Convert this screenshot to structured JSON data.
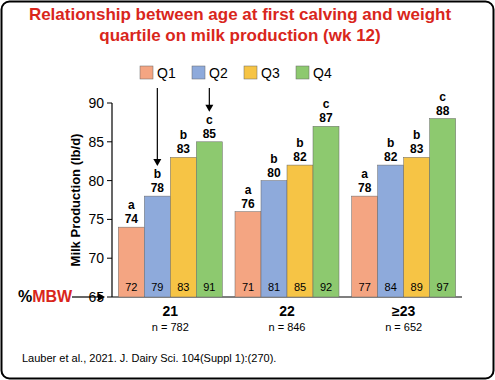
{
  "chart_data": {
    "type": "bar",
    "title": "Relationship between age at first calving and weight quartile on milk production (wk 12)",
    "y_label": "Milk Production (lb/d)",
    "categories": [
      "21",
      "22",
      "≥23"
    ],
    "n_labels": [
      "n = 782",
      "n = 846",
      "n = 652"
    ],
    "mbw_label": "%MBW",
    "source": "Lauber et al., 2021. J. Dairy Sci. 104(Suppl 1):(270).",
    "series": [
      {
        "name": "Q1",
        "color": "#f4a582",
        "values": [
          74,
          76,
          78
        ],
        "letters": [
          "a",
          "a",
          "a"
        ],
        "mbw": [
          72,
          71,
          77
        ]
      },
      {
        "name": "Q2",
        "color": "#8eaadb",
        "values": [
          78,
          80,
          82
        ],
        "letters": [
          "b",
          "b",
          "b"
        ],
        "mbw": [
          79,
          81,
          84
        ]
      },
      {
        "name": "Q3",
        "color": "#f6c445",
        "values": [
          83,
          82,
          83
        ],
        "letters": [
          "b",
          "b",
          "b"
        ],
        "mbw": [
          83,
          85,
          89
        ]
      },
      {
        "name": "Q4",
        "color": "#8dc96f",
        "values": [
          85,
          87,
          88
        ],
        "letters": [
          "c",
          "c",
          "c"
        ],
        "mbw": [
          91,
          92,
          97
        ]
      }
    ],
    "ylim": [
      65,
      90
    ],
    "yticks": [
      65,
      70,
      75,
      80,
      85,
      90
    ],
    "grid": false,
    "legend": "top",
    "data_labels": true
  }
}
